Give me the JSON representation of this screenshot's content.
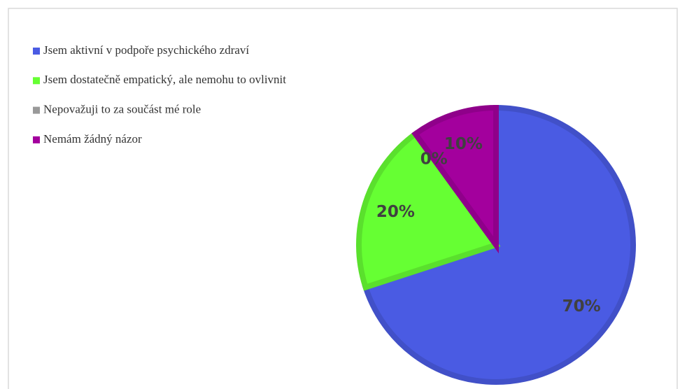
{
  "chart_data": {
    "type": "pie",
    "categories": [
      "Jsem aktivní v podpoře psychického zdraví",
      "Jsem dostatečně empatický, ale nemohu to ovlivnit",
      "Nepovažuji to za součást mé role",
      "Nemám žádný názor"
    ],
    "values": [
      70,
      20,
      0,
      10
    ],
    "value_labels": [
      "70%",
      "20%",
      "0%",
      "10%"
    ],
    "colors": [
      "#4a5be3",
      "#66ff33",
      "#999999",
      "#a3009d"
    ],
    "legend": "top-left"
  }
}
